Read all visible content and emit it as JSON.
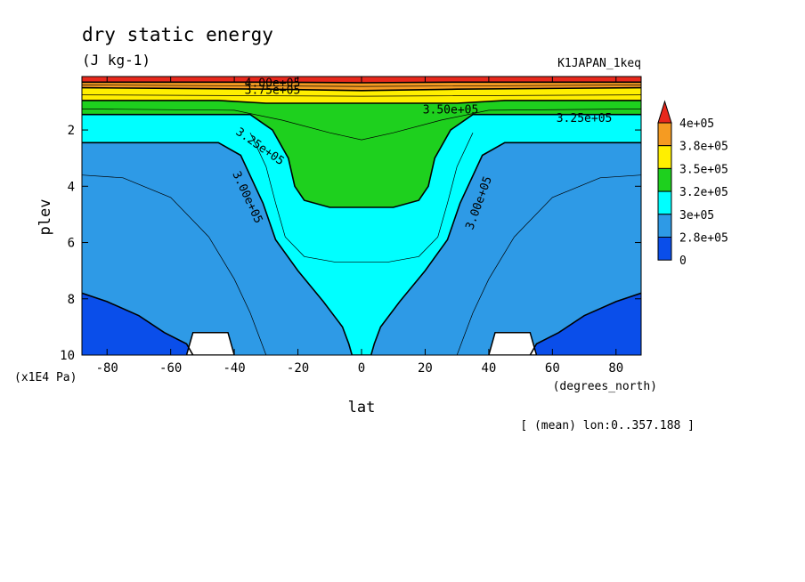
{
  "chart_data": {
    "type": "heatmap",
    "title": "dry static energy",
    "units": "(J kg-1)",
    "dataset": "K1JAPAN_1keq",
    "xlabel": "lat",
    "x_units": "(degrees_north)",
    "ylabel": "plev",
    "y_units": "(x1E4 Pa)",
    "note": "[ (mean) lon:0..357.188 ]",
    "x_ticks": [
      "-80",
      "-60",
      "-40",
      "-20",
      "0",
      "20",
      "40",
      "60",
      "80"
    ],
    "x_tick_values": [
      -80,
      -60,
      -40,
      -20,
      0,
      20,
      40,
      60,
      80
    ],
    "y_ticks": [
      "2",
      "4",
      "6",
      "8",
      "10"
    ],
    "y_tick_values": [
      2,
      4,
      6,
      8,
      10
    ],
    "xlim": [
      -87.9,
      87.9
    ],
    "ylim": [
      10,
      0.1
    ],
    "contour_labels": [
      {
        "text": "4.00e+05",
        "lat": -28,
        "plev": 0.35,
        "angle": 0
      },
      {
        "text": "3.75e+05",
        "lat": -28,
        "plev": 0.6,
        "angle": 0
      },
      {
        "text": "3.50e+05",
        "lat": 28,
        "plev": 1.3,
        "angle": 0
      },
      {
        "text": "3.25e+05",
        "lat": 70,
        "plev": 1.6,
        "angle": 0
      },
      {
        "text": "3.25e+05",
        "lat": -32,
        "plev": 2.6,
        "angle": 35
      },
      {
        "text": "3.00e+05",
        "lat": -36,
        "plev": 4.4,
        "angle": 65
      },
      {
        "text": "3.00e+05",
        "lat": 37,
        "plev": 4.6,
        "angle": -70
      }
    ],
    "legend": {
      "labels": [
        "4e+05",
        "3.8e+05",
        "3.5e+05",
        "3.2e+05",
        "3e+05",
        "2.8e+05",
        "0"
      ],
      "colors": [
        "#e8281c",
        "#f59b22",
        "#ffef00",
        "#1ed01e",
        "#00ffff",
        "#2e9ae6",
        "#0a4eea"
      ]
    },
    "levels": {
      "level_values": [
        0,
        280000,
        300000,
        325000,
        350000,
        375000,
        400000
      ],
      "boundaries": [
        {
          "name": "dsb_300",
          "points": [
            [
              -87.9,
              2.45
            ],
            [
              -45,
              2.45
            ],
            [
              -38,
              2.9
            ],
            [
              -31,
              4.6
            ],
            [
              -27,
              5.9
            ],
            [
              -20,
              7.0
            ],
            [
              -12,
              8.1
            ],
            [
              -6,
              9.0
            ],
            [
              -4,
              9.6
            ],
            [
              -3,
              10
            ],
            [
              3,
              10
            ],
            [
              4,
              9.6
            ],
            [
              6,
              9.0
            ],
            [
              12,
              8.1
            ],
            [
              20,
              7.0
            ],
            [
              27,
              5.9
            ],
            [
              31,
              4.6
            ],
            [
              38,
              2.9
            ],
            [
              45,
              2.45
            ],
            [
              87.9,
              2.45
            ]
          ]
        },
        {
          "name": "dsb_325",
          "points": [
            [
              -87.9,
              1.45
            ],
            [
              -35,
              1.45
            ],
            [
              -28,
              2.0
            ],
            [
              -23,
              3.0
            ],
            [
              -21,
              4.0
            ],
            [
              -18,
              4.5
            ],
            [
              -10,
              4.75
            ],
            [
              10,
              4.75
            ],
            [
              18,
              4.5
            ],
            [
              21,
              4.0
            ],
            [
              23,
              3.0
            ],
            [
              28,
              2.0
            ],
            [
              35,
              1.45
            ],
            [
              87.9,
              1.45
            ]
          ]
        },
        {
          "name": "dsb_350",
          "points": [
            [
              -87.9,
              0.95
            ],
            [
              -45,
              0.95
            ],
            [
              -30,
              1.05
            ],
            [
              0,
              1.05
            ],
            [
              30,
              1.05
            ],
            [
              45,
              0.95
            ],
            [
              87.9,
              0.95
            ]
          ]
        },
        {
          "name": "dsb_375",
          "points": [
            [
              -87.9,
              0.5
            ],
            [
              -30,
              0.55
            ],
            [
              0,
              0.6
            ],
            [
              30,
              0.55
            ],
            [
              87.9,
              0.5
            ]
          ]
        },
        {
          "name": "dsb_400",
          "points": [
            [
              -87.9,
              0.3
            ],
            [
              -30,
              0.3
            ],
            [
              0,
              0.32
            ],
            [
              30,
              0.3
            ],
            [
              87.9,
              0.3
            ]
          ]
        },
        {
          "name": "dsb_280_south",
          "points": [
            [
              -87.9,
              7.8
            ],
            [
              -80,
              8.1
            ],
            [
              -70,
              8.6
            ],
            [
              -62,
              9.2
            ],
            [
              -55,
              9.6
            ],
            [
              -53,
              10
            ]
          ]
        },
        {
          "name": "dsb_280_north",
          "points": [
            [
              53,
              10
            ],
            [
              55,
              9.6
            ],
            [
              62,
              9.2
            ],
            [
              70,
              8.6
            ],
            [
              80,
              8.1
            ],
            [
              87.9,
              7.8
            ]
          ]
        }
      ],
      "thin_contours": [
        {
          "name": "c287_s",
          "points": [
            [
              -87.9,
              3.6
            ],
            [
              -75,
              3.7
            ],
            [
              -60,
              4.4
            ],
            [
              -48,
              5.8
            ],
            [
              -40,
              7.3
            ],
            [
              -35,
              8.5
            ],
            [
              -32,
              9.4
            ],
            [
              -30,
              10
            ]
          ]
        },
        {
          "name": "c287_n",
          "points": [
            [
              30,
              10
            ],
            [
              32,
              9.4
            ],
            [
              35,
              8.5
            ],
            [
              40,
              7.3
            ],
            [
              48,
              5.8
            ],
            [
              60,
              4.4
            ],
            [
              75,
              3.7
            ],
            [
              87.9,
              3.6
            ]
          ]
        },
        {
          "name": "c312",
          "points": [
            [
              -35,
              2.1
            ],
            [
              -30,
              3.3
            ],
            [
              -27,
              4.6
            ],
            [
              -24,
              5.8
            ],
            [
              -18,
              6.5
            ],
            [
              -8,
              6.7
            ],
            [
              8,
              6.7
            ],
            [
              18,
              6.5
            ],
            [
              24,
              5.8
            ],
            [
              27,
              4.6
            ],
            [
              30,
              3.3
            ],
            [
              35,
              2.1
            ]
          ]
        },
        {
          "name": "c337",
          "points": [
            [
              -87.9,
              1.25
            ],
            [
              -40,
              1.3
            ],
            [
              -25,
              1.65
            ],
            [
              -10,
              2.1
            ],
            [
              0,
              2.35
            ],
            [
              10,
              2.1
            ],
            [
              25,
              1.65
            ],
            [
              40,
              1.3
            ],
            [
              87.9,
              1.25
            ]
          ]
        },
        {
          "name": "c362",
          "points": [
            [
              -87.9,
              0.75
            ],
            [
              0,
              0.8
            ],
            [
              87.9,
              0.75
            ]
          ]
        },
        {
          "name": "c387",
          "points": [
            [
              -87.9,
              0.4
            ],
            [
              0,
              0.45
            ],
            [
              87.9,
              0.4
            ]
          ]
        }
      ],
      "missing_regions": [
        [
          [
            -55,
            10
          ],
          [
            -53,
            9.2
          ],
          [
            -42,
            9.2
          ],
          [
            -40,
            10
          ]
        ],
        [
          [
            40,
            10
          ],
          [
            42,
            9.2
          ],
          [
            53,
            9.2
          ],
          [
            55,
            10
          ]
        ]
      ]
    }
  }
}
